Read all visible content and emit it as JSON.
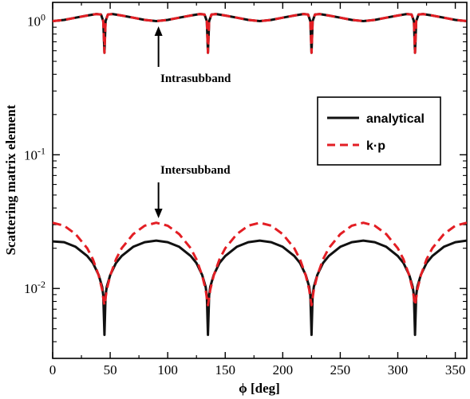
{
  "chart_data": {
    "type": "line",
    "xlabel": "ϕ [deg]",
    "ylabel": "Scattering matrix element",
    "xlim": [
      0,
      360
    ],
    "ylim": [
      0.003,
      1.38
    ],
    "yscale": "log",
    "x_ticks": [
      0,
      50,
      100,
      150,
      200,
      250,
      300,
      350
    ],
    "y_ticks": [
      {
        "value": 0.01,
        "base": "10",
        "exp": "-2"
      },
      {
        "value": 0.1,
        "base": "10",
        "exp": "-1"
      },
      {
        "value": 1,
        "base": "10",
        "exp": "0"
      }
    ],
    "grid": false,
    "legend": {
      "placement": "right",
      "entries": [
        {
          "label": "analytical",
          "color": "#111111",
          "style": "solid"
        },
        {
          "label": "k·p",
          "color": "#e31e24",
          "style": "dashed"
        }
      ]
    },
    "annotations": [
      {
        "text": "Intrasubband",
        "arrow_x": 92,
        "arrow_direction": "up"
      },
      {
        "text": "Intersubband",
        "arrow_x": 92,
        "arrow_direction": "down"
      }
    ],
    "series": [
      {
        "name": "analytical",
        "color": "#111111",
        "style": "solid",
        "group": "intra",
        "x": [
          0,
          10,
          20,
          30,
          38,
          42,
          44,
          45,
          46,
          48,
          52,
          60,
          70,
          80,
          90,
          100,
          110,
          120,
          128,
          132,
          134,
          135,
          136,
          138,
          142,
          150,
          160,
          170,
          180,
          190,
          200,
          210,
          218,
          222,
          224,
          225,
          226,
          228,
          232,
          240,
          250,
          260,
          270,
          280,
          290,
          300,
          308,
          312,
          314,
          315,
          316,
          318,
          322,
          330,
          340,
          350,
          360
        ],
        "y": [
          1.0,
          1.02,
          1.06,
          1.1,
          1.13,
          1.12,
          1.0,
          0.58,
          1.0,
          1.12,
          1.13,
          1.1,
          1.06,
          1.02,
          1.0,
          1.02,
          1.06,
          1.1,
          1.13,
          1.12,
          1.0,
          0.58,
          1.0,
          1.12,
          1.13,
          1.1,
          1.06,
          1.02,
          1.0,
          1.02,
          1.06,
          1.1,
          1.13,
          1.12,
          1.0,
          0.58,
          1.0,
          1.12,
          1.13,
          1.1,
          1.06,
          1.02,
          1.0,
          1.02,
          1.06,
          1.1,
          1.13,
          1.12,
          1.0,
          0.58,
          1.0,
          1.12,
          1.13,
          1.1,
          1.06,
          1.02,
          1.0
        ]
      },
      {
        "name": "k·p",
        "color": "#e31e24",
        "style": "dashed",
        "group": "intra",
        "x": [
          0,
          10,
          20,
          30,
          38,
          42,
          44,
          45,
          46,
          48,
          52,
          60,
          70,
          80,
          90,
          100,
          110,
          120,
          128,
          132,
          134,
          135,
          136,
          138,
          142,
          150,
          160,
          170,
          180,
          190,
          200,
          210,
          218,
          222,
          224,
          225,
          226,
          228,
          232,
          240,
          250,
          260,
          270,
          280,
          290,
          300,
          308,
          312,
          314,
          315,
          316,
          318,
          322,
          330,
          340,
          350,
          360
        ],
        "y": [
          1.0,
          1.02,
          1.06,
          1.1,
          1.13,
          1.12,
          1.0,
          0.58,
          1.0,
          1.12,
          1.13,
          1.1,
          1.06,
          1.02,
          1.0,
          1.02,
          1.06,
          1.1,
          1.13,
          1.12,
          1.0,
          0.58,
          1.0,
          1.12,
          1.13,
          1.1,
          1.06,
          1.02,
          1.0,
          1.02,
          1.06,
          1.1,
          1.13,
          1.12,
          1.0,
          0.58,
          1.0,
          1.12,
          1.13,
          1.1,
          1.06,
          1.02,
          1.0,
          1.02,
          1.06,
          1.1,
          1.13,
          1.12,
          1.0,
          0.58,
          1.0,
          1.12,
          1.13,
          1.1,
          1.06,
          1.02,
          1.0
        ]
      },
      {
        "name": "analytical",
        "color": "#111111",
        "style": "solid",
        "group": "inter",
        "x": [
          0,
          10,
          20,
          30,
          35,
          40,
          43,
          44,
          45,
          46,
          47,
          50,
          55,
          60,
          70,
          80,
          90,
          100,
          110,
          120,
          125,
          130,
          133,
          134,
          135,
          136,
          137,
          140,
          145,
          150,
          160,
          170,
          180,
          190,
          200,
          210,
          215,
          220,
          223,
          224,
          225,
          226,
          227,
          230,
          235,
          240,
          250,
          260,
          270,
          280,
          290,
          300,
          305,
          310,
          313,
          314,
          315,
          316,
          317,
          320,
          325,
          330,
          340,
          350,
          360
        ],
        "y": [
          0.0225,
          0.0222,
          0.0205,
          0.0175,
          0.0155,
          0.0126,
          0.0103,
          0.0089,
          0.0045,
          0.0089,
          0.0103,
          0.0126,
          0.0155,
          0.0175,
          0.0205,
          0.0222,
          0.0228,
          0.0222,
          0.0205,
          0.0175,
          0.0155,
          0.0126,
          0.0103,
          0.0089,
          0.0045,
          0.0089,
          0.0103,
          0.0126,
          0.0155,
          0.0175,
          0.0205,
          0.0222,
          0.0228,
          0.0222,
          0.0205,
          0.0175,
          0.0155,
          0.0126,
          0.0103,
          0.0089,
          0.0045,
          0.0089,
          0.0103,
          0.0126,
          0.0155,
          0.0175,
          0.0205,
          0.0222,
          0.0228,
          0.0222,
          0.0205,
          0.0175,
          0.0155,
          0.0126,
          0.0103,
          0.0089,
          0.0045,
          0.0089,
          0.0103,
          0.0126,
          0.0155,
          0.0175,
          0.0205,
          0.0222,
          0.0228
        ]
      },
      {
        "name": "k·p",
        "color": "#e31e24",
        "style": "dashed",
        "group": "inter",
        "x": [
          0,
          10,
          20,
          30,
          35,
          40,
          43,
          44,
          45,
          46,
          47,
          50,
          55,
          60,
          70,
          80,
          90,
          100,
          110,
          120,
          125,
          130,
          133,
          134,
          135,
          136,
          137,
          140,
          145,
          150,
          160,
          170,
          180,
          190,
          200,
          210,
          215,
          220,
          223,
          224,
          225,
          226,
          227,
          230,
          235,
          240,
          250,
          260,
          270,
          280,
          290,
          300,
          305,
          310,
          313,
          314,
          315,
          316,
          317,
          320,
          325,
          330,
          340,
          350,
          360
        ],
        "y": [
          0.031,
          0.0295,
          0.0255,
          0.02,
          0.0165,
          0.0125,
          0.0098,
          0.0085,
          0.0075,
          0.0085,
          0.0098,
          0.0125,
          0.0165,
          0.02,
          0.0255,
          0.0295,
          0.031,
          0.0295,
          0.0255,
          0.02,
          0.0165,
          0.0125,
          0.0098,
          0.0085,
          0.0075,
          0.0085,
          0.0098,
          0.0125,
          0.0165,
          0.02,
          0.0255,
          0.0295,
          0.031,
          0.0295,
          0.0255,
          0.02,
          0.0165,
          0.0125,
          0.0098,
          0.0085,
          0.0075,
          0.0085,
          0.0098,
          0.0125,
          0.0165,
          0.02,
          0.0255,
          0.0295,
          0.031,
          0.0295,
          0.0255,
          0.02,
          0.0165,
          0.0125,
          0.0098,
          0.0085,
          0.0075,
          0.0085,
          0.0098,
          0.0125,
          0.0165,
          0.02,
          0.0255,
          0.0295,
          0.031
        ]
      }
    ]
  }
}
